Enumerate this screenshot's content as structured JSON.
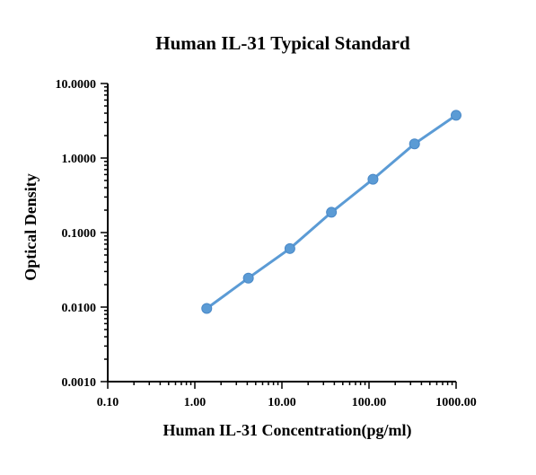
{
  "chart_data": {
    "type": "line",
    "title": "Human IL-31 Typical Standard",
    "xlabel": "Human IL-31 Concentration(pg/ml)",
    "ylabel": "Optical Density",
    "x_scale": "log",
    "y_scale": "log",
    "xlim": [
      0.1,
      1000
    ],
    "ylim": [
      0.001,
      10
    ],
    "x_tick_labels": [
      "0.10",
      "1.00",
      "10.00",
      "100.00",
      "1000.00"
    ],
    "y_tick_labels": [
      "0.0010",
      "0.0100",
      "0.1000",
      "1.0000",
      "10.0000"
    ],
    "grid": false,
    "series": [
      {
        "color": "#5b9bd5",
        "x": [
          1.37,
          4.12,
          12.35,
          37.04,
          111.1,
          333.3,
          1000
        ],
        "y": [
          0.0096,
          0.0245,
          0.061,
          0.187,
          0.52,
          1.55,
          3.75
        ]
      }
    ]
  }
}
